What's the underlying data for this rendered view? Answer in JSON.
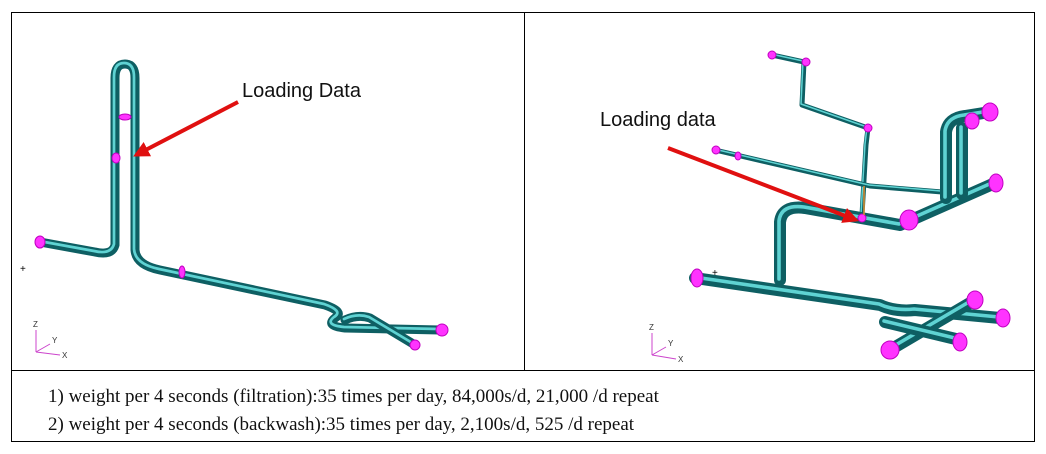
{
  "figure": {
    "left": {
      "label": "Loading Data",
      "axes": [
        "Z",
        "Y",
        "X"
      ]
    },
    "right": {
      "label": "Loading data",
      "axes": [
        "Z",
        "Y",
        "X"
      ]
    }
  },
  "notes": [
    "1) weight per 4 seconds (filtration):35 times per day, 84,000s/d, 21,000 /d repeat",
    "2) weight per 4 seconds (backwash):35 times per day, 2,100s/d, 525 /d repeat"
  ]
}
